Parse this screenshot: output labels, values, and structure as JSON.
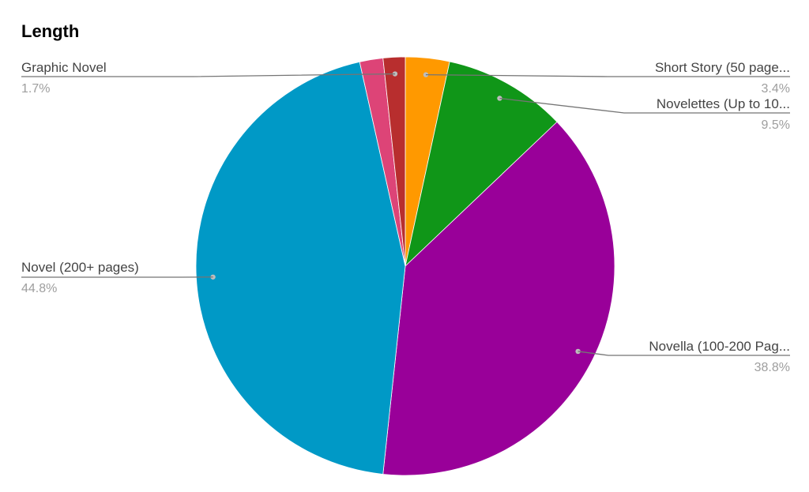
{
  "chart_data": {
    "type": "pie",
    "title": "Length",
    "slices": [
      {
        "label": "Short Story (50 page...",
        "value": 3.4,
        "display": "3.4%",
        "color": "#ff9900"
      },
      {
        "label": "Novelettes (Up to 10...",
        "value": 9.5,
        "display": "9.5%",
        "color": "#109618"
      },
      {
        "label": "Novella (100-200 Pag...",
        "value": 38.8,
        "display": "38.8%",
        "color": "#990099"
      },
      {
        "label": "Novel (200+ pages)",
        "value": 44.8,
        "display": "44.8%",
        "color": "#0099c6"
      },
      {
        "label": "",
        "value": 1.8,
        "display": "",
        "color": "#dd4477"
      },
      {
        "label": "Graphic Novel",
        "value": 1.7,
        "display": "1.7%",
        "color": "#b82e2e"
      }
    ],
    "legend": "none",
    "start_angle": "12 o'clock, clockwise"
  }
}
